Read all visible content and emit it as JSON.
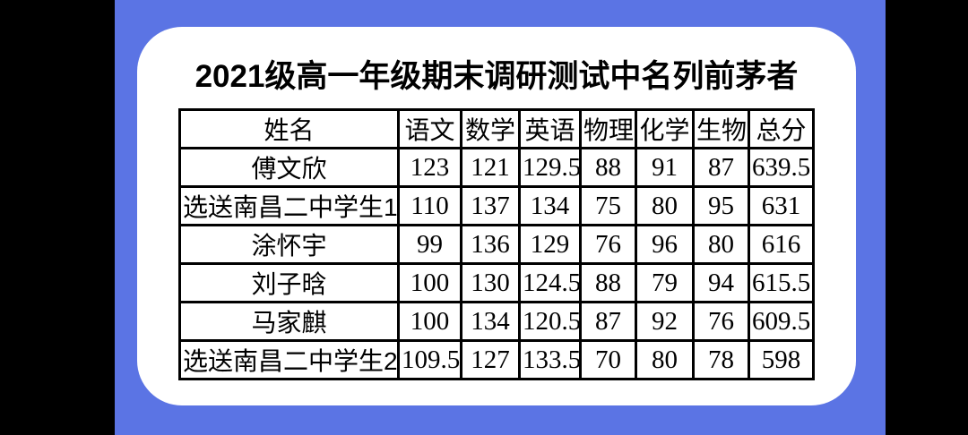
{
  "page": {
    "title": "2021级高一年级期末调研测试中名列前茅者"
  },
  "colors": {
    "outer_background": "#000000",
    "panel_blue": "#5b74e4",
    "card_white": "#ffffff",
    "table_border": "#000000",
    "text": "#000000"
  },
  "table": {
    "columns": [
      "姓名",
      "语文",
      "数学",
      "英语",
      "物理",
      "化学",
      "生物",
      "总分"
    ],
    "rows": [
      {
        "name": "傅文欣",
        "scores": [
          "123",
          "121",
          "129.5",
          "88",
          "91",
          "87",
          "639.5"
        ]
      },
      {
        "name": "选送南昌二中学生1",
        "scores": [
          "110",
          "137",
          "134",
          "75",
          "80",
          "95",
          "631"
        ]
      },
      {
        "name": "涂怀宇",
        "scores": [
          "99",
          "136",
          "129",
          "76",
          "96",
          "80",
          "616"
        ]
      },
      {
        "name": "刘子晗",
        "scores": [
          "100",
          "130",
          "124.5",
          "88",
          "79",
          "94",
          "615.5"
        ]
      },
      {
        "name": "马家麒",
        "scores": [
          "100",
          "134",
          "120.5",
          "87",
          "92",
          "76",
          "609.5"
        ]
      },
      {
        "name": "选送南昌二中学生2",
        "scores": [
          "109.5",
          "127",
          "133.5",
          "70",
          "80",
          "78",
          "598"
        ]
      }
    ]
  },
  "chart_data": {
    "type": "table",
    "title": "2021级高一年级期末调研测试中名列前茅者",
    "columns": [
      "姓名",
      "语文",
      "数学",
      "英语",
      "物理",
      "化学",
      "生物",
      "总分"
    ],
    "rows": [
      [
        "傅文欣",
        123,
        121,
        129.5,
        88,
        91,
        87,
        639.5
      ],
      [
        "选送南昌二中学生1",
        110,
        137,
        134,
        75,
        80,
        95,
        631
      ],
      [
        "涂怀宇",
        99,
        136,
        129,
        76,
        96,
        80,
        616
      ],
      [
        "刘子晗",
        100,
        130,
        124.5,
        88,
        79,
        94,
        615.5
      ],
      [
        "马家麒",
        100,
        134,
        120.5,
        87,
        92,
        76,
        609.5
      ],
      [
        "选送南昌二中学生2",
        109.5,
        127,
        133.5,
        70,
        80,
        78,
        598
      ]
    ]
  }
}
